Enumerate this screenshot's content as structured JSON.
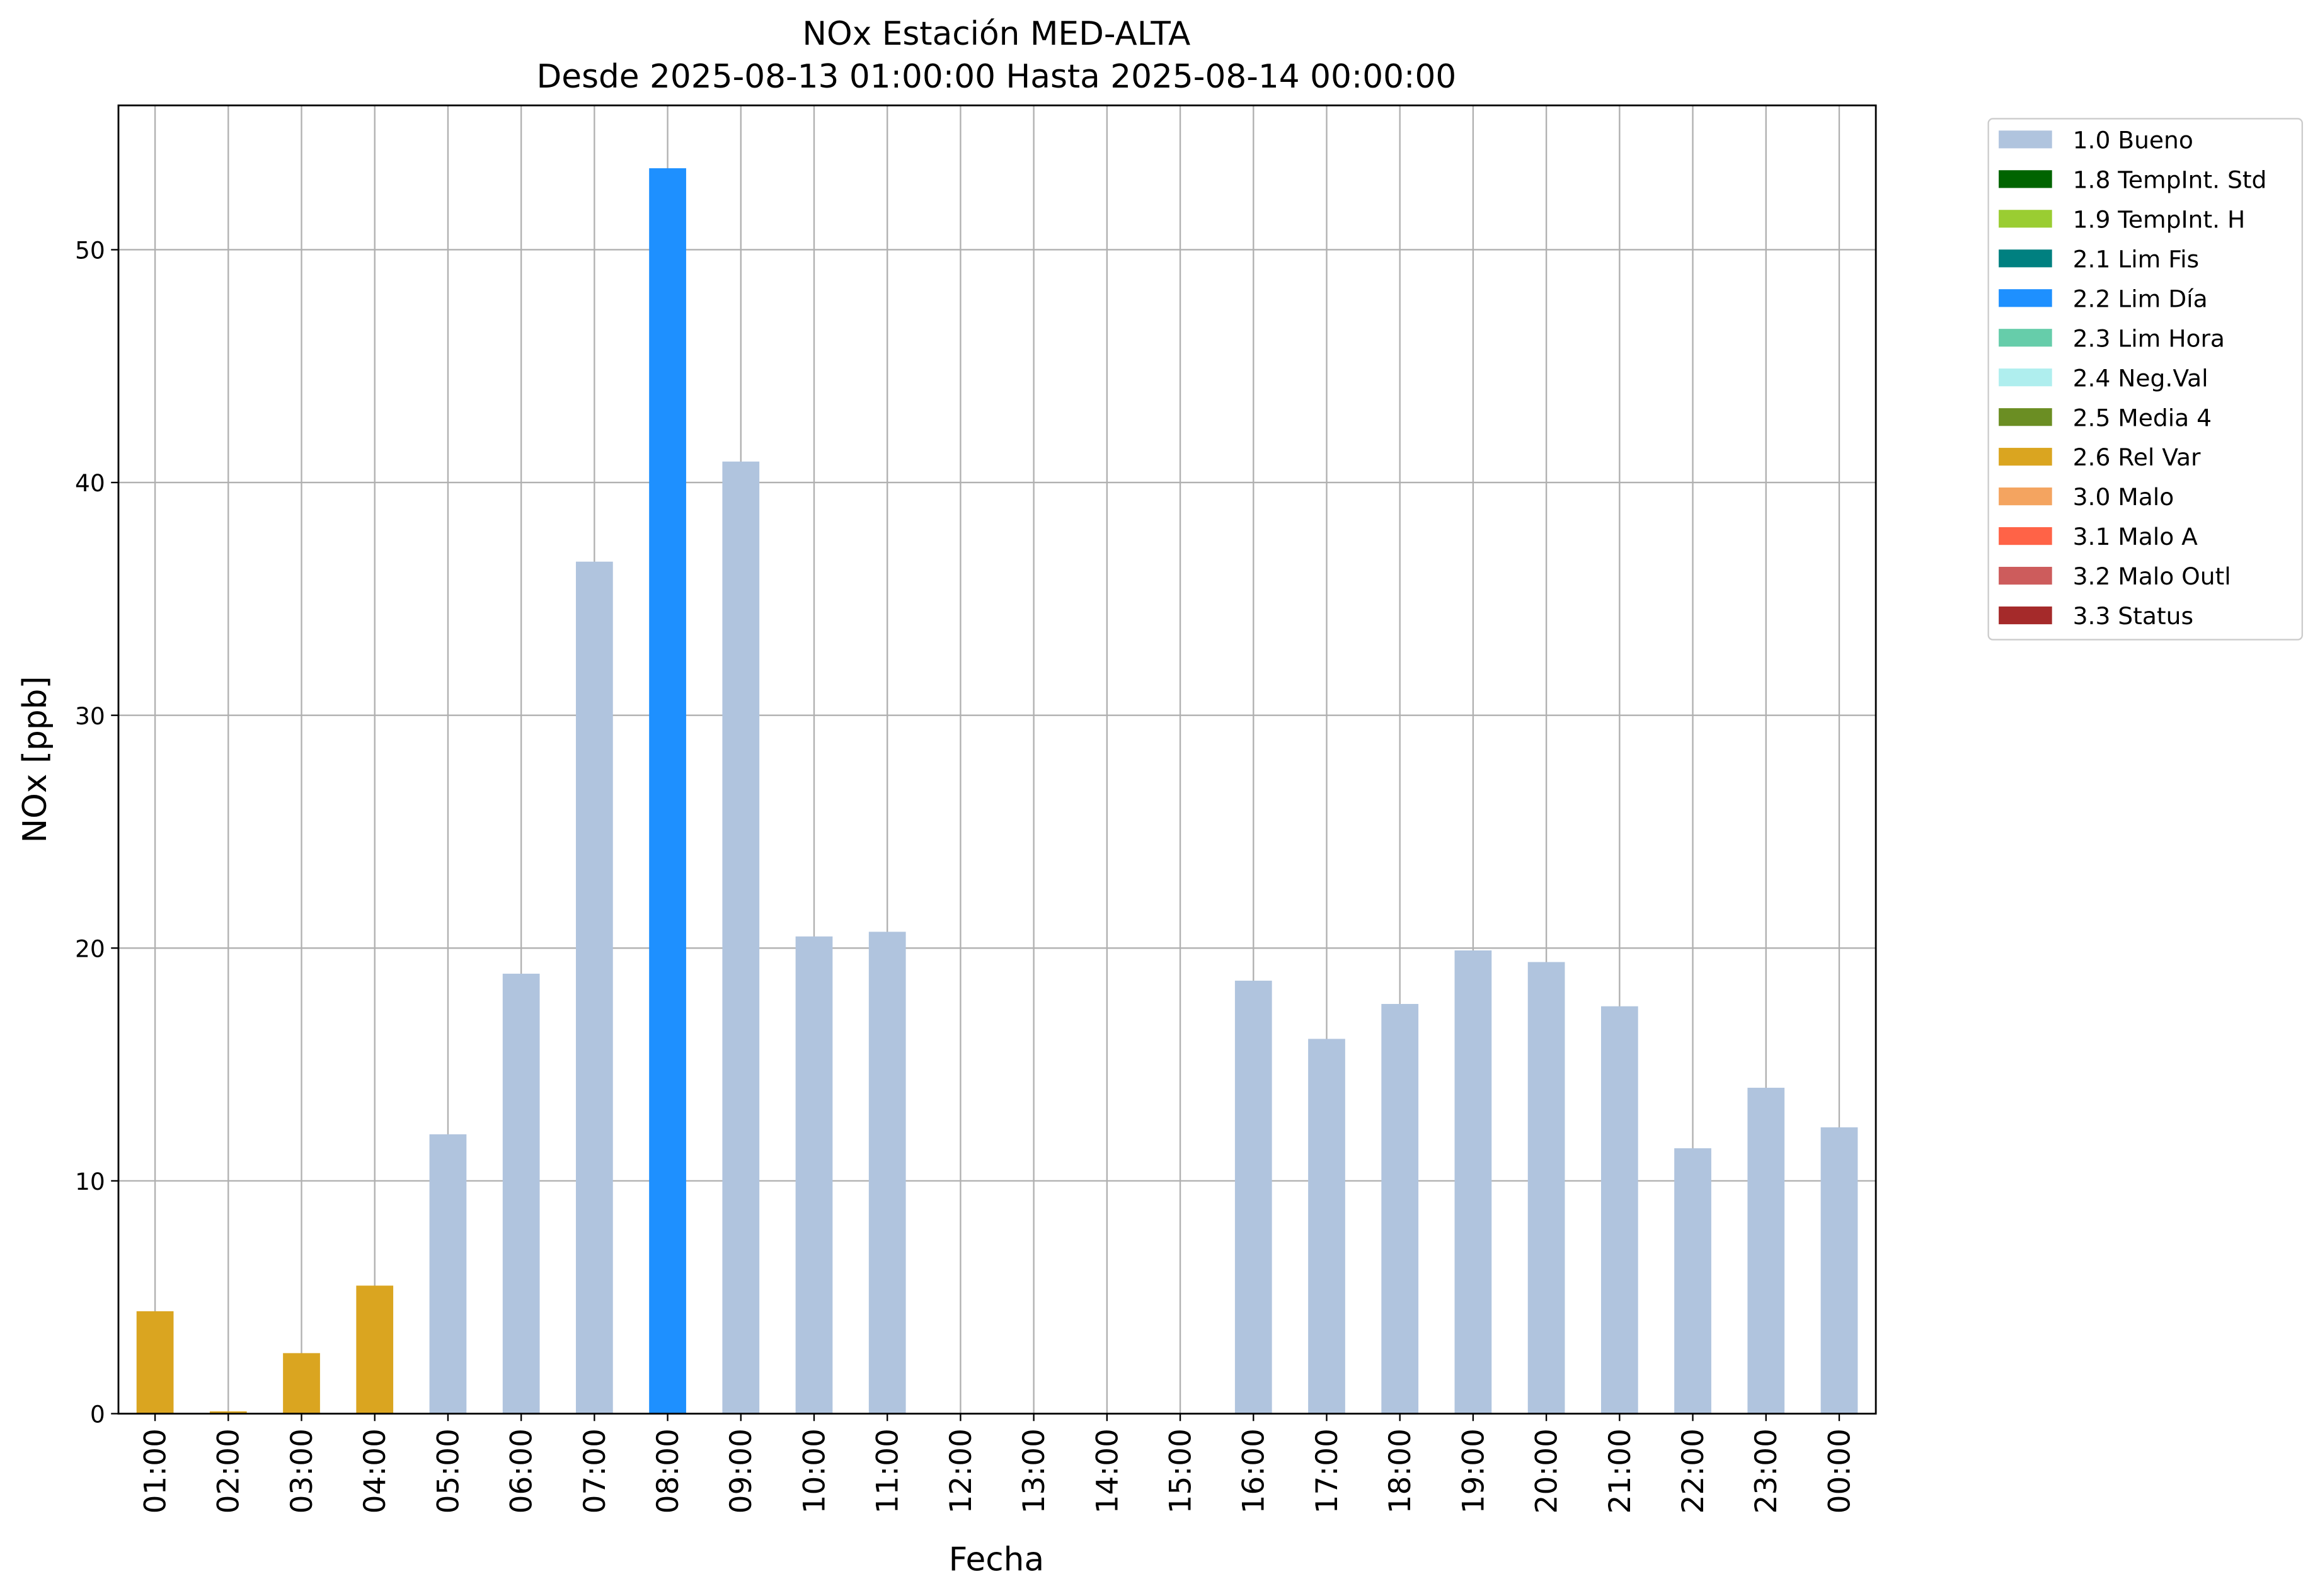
{
  "chart_data": {
    "type": "bar",
    "stacked": true,
    "title": "NOx Estación MED-ALTA",
    "subtitle": "Desde 2025-08-13 01:00:00 Hasta 2025-08-14 00:00:00",
    "x_label": "Fecha",
    "y_label": "NOx [ppb]",
    "categories": [
      "01:00",
      "02:00",
      "03:00",
      "04:00",
      "05:00",
      "06:00",
      "07:00",
      "08:00",
      "09:00",
      "10:00",
      "11:00",
      "12:00",
      "13:00",
      "14:00",
      "15:00",
      "16:00",
      "17:00",
      "18:00",
      "19:00",
      "20:00",
      "21:00",
      "22:00",
      "23:00",
      "00:00"
    ],
    "series": [
      {
        "name": "1.0 Bueno",
        "color": "#b0c4de",
        "values": [
          null,
          null,
          null,
          null,
          12.0,
          18.9,
          36.6,
          null,
          40.9,
          20.5,
          20.7,
          null,
          null,
          null,
          null,
          18.6,
          16.1,
          17.6,
          19.9,
          19.4,
          17.5,
          11.4,
          14.0,
          12.3
        ]
      },
      {
        "name": "1.8 TempInt. Std",
        "color": "#006400",
        "values": [
          null,
          null,
          null,
          null,
          null,
          null,
          null,
          null,
          null,
          null,
          null,
          null,
          null,
          null,
          null,
          null,
          null,
          null,
          null,
          null,
          null,
          null,
          null,
          null
        ]
      },
      {
        "name": "1.9 TempInt. H",
        "color": "#9acd32",
        "values": [
          null,
          null,
          null,
          null,
          null,
          null,
          null,
          null,
          null,
          null,
          null,
          null,
          null,
          null,
          null,
          null,
          null,
          null,
          null,
          null,
          null,
          null,
          null,
          null
        ]
      },
      {
        "name": "2.1 Lim Fis",
        "color": "#008080",
        "values": [
          null,
          null,
          null,
          null,
          null,
          null,
          null,
          null,
          null,
          null,
          null,
          null,
          null,
          null,
          null,
          null,
          null,
          null,
          null,
          null,
          null,
          null,
          null,
          null
        ]
      },
      {
        "name": "2.2 Lim Día",
        "color": "#1e90ff",
        "values": [
          null,
          null,
          null,
          null,
          null,
          null,
          null,
          53.5,
          null,
          null,
          null,
          null,
          null,
          null,
          null,
          null,
          null,
          null,
          null,
          null,
          null,
          null,
          null,
          null
        ]
      },
      {
        "name": "2.3 Lim Hora",
        "color": "#66cdaa",
        "values": [
          null,
          null,
          null,
          null,
          null,
          null,
          null,
          null,
          null,
          null,
          null,
          null,
          null,
          null,
          null,
          null,
          null,
          null,
          null,
          null,
          null,
          null,
          null,
          null
        ]
      },
      {
        "name": "2.4 Neg.Val",
        "color": "#afeeee",
        "values": [
          null,
          null,
          null,
          null,
          null,
          null,
          null,
          null,
          null,
          null,
          null,
          null,
          null,
          null,
          null,
          null,
          null,
          null,
          null,
          null,
          null,
          null,
          null,
          null
        ]
      },
      {
        "name": "2.5 Media 4",
        "color": "#6b8e23",
        "values": [
          null,
          null,
          null,
          null,
          null,
          null,
          null,
          null,
          null,
          null,
          null,
          null,
          null,
          null,
          null,
          null,
          null,
          null,
          null,
          null,
          null,
          null,
          null,
          null
        ]
      },
      {
        "name": "2.6 Rel Var",
        "color": "#daa520",
        "values": [
          4.4,
          0.1,
          2.6,
          5.5,
          null,
          null,
          null,
          null,
          null,
          null,
          null,
          null,
          null,
          null,
          null,
          null,
          null,
          null,
          null,
          null,
          null,
          null,
          null,
          null
        ]
      },
      {
        "name": "3.0 Malo",
        "color": "#f4a460",
        "values": [
          null,
          null,
          null,
          null,
          null,
          null,
          null,
          null,
          null,
          null,
          null,
          null,
          null,
          null,
          null,
          null,
          null,
          null,
          null,
          null,
          null,
          null,
          null,
          null
        ]
      },
      {
        "name": "3.1 Malo A",
        "color": "#ff6347",
        "values": [
          null,
          null,
          null,
          null,
          null,
          null,
          null,
          null,
          null,
          null,
          null,
          null,
          null,
          null,
          null,
          null,
          null,
          null,
          null,
          null,
          null,
          null,
          null,
          null
        ]
      },
      {
        "name": "3.2 Malo Outl",
        "color": "#cd5c5c",
        "values": [
          null,
          null,
          null,
          null,
          null,
          null,
          null,
          null,
          null,
          null,
          null,
          null,
          null,
          null,
          null,
          null,
          null,
          null,
          null,
          null,
          null,
          null,
          null,
          null
        ]
      },
      {
        "name": "3.3 Status",
        "color": "#a52a2a",
        "values": [
          null,
          null,
          null,
          null,
          null,
          null,
          null,
          null,
          null,
          null,
          null,
          null,
          null,
          null,
          null,
          null,
          null,
          null,
          null,
          null,
          null,
          null,
          null,
          null
        ]
      }
    ],
    "ylim": [
      0,
      56.2
    ],
    "yticks": [
      0,
      10,
      20,
      30,
      40,
      50
    ],
    "grid": true,
    "legend": "outside right"
  }
}
